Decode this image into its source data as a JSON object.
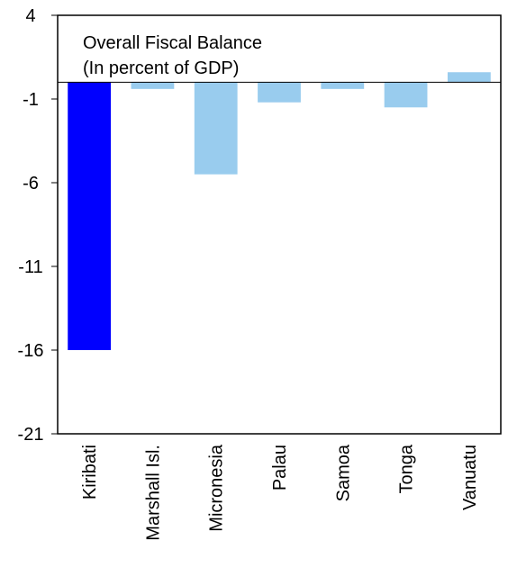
{
  "chart_data": {
    "type": "bar",
    "title": "Overall Fiscal Balance",
    "subtitle": "(In percent of GDP)",
    "xlabel": "",
    "ylabel": "",
    "categories": [
      "Kiribati",
      "Marshall Isl.",
      "Micronesia",
      "Palau",
      "Samoa",
      "Tonga",
      "Vanuatu"
    ],
    "values": [
      -16.0,
      -0.4,
      -5.5,
      -1.2,
      -0.4,
      -1.5,
      0.6
    ],
    "ylim": [
      -21,
      4
    ],
    "yticks": [
      "4",
      "-1",
      "-6",
      "-11",
      "-16",
      "-21"
    ],
    "grid": false,
    "legend": "none",
    "colors": {
      "highlight": "#0000ff",
      "default": "#99ccee",
      "axis": "#000000"
    },
    "highlight_index": 0
  }
}
